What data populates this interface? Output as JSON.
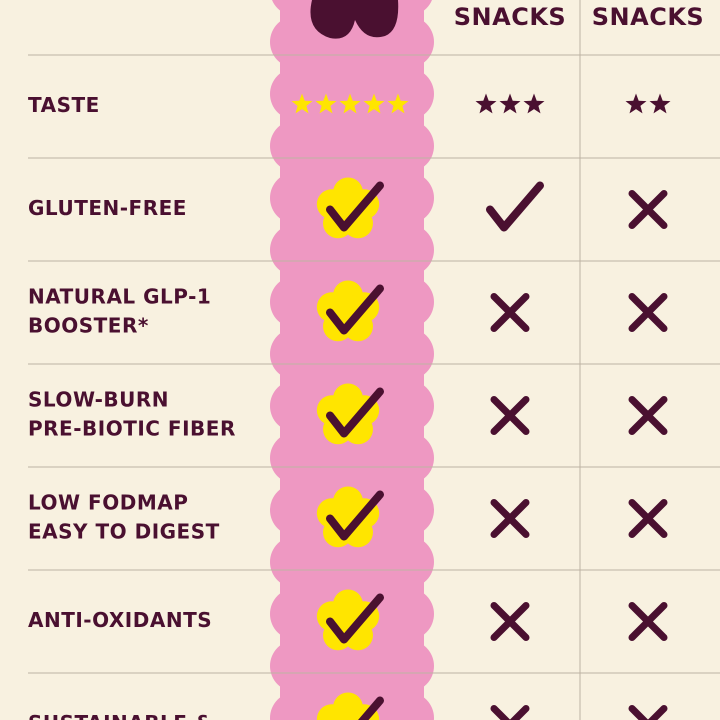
{
  "table": {
    "columns": [
      "SNACKS",
      "SNACKS"
    ],
    "rows": [
      {
        "label": [
          "TASTE"
        ],
        "ratings": [
          5,
          3,
          2
        ]
      },
      {
        "label": [
          "GLUTEN-FREE"
        ],
        "checks": [
          true,
          true,
          false
        ]
      },
      {
        "label": [
          "NATURAL GLP-1",
          "BOOSTER*"
        ],
        "checks": [
          true,
          false,
          false
        ]
      },
      {
        "label": [
          "SLOW-BURN",
          "PRE-BIOTIC FIBER"
        ],
        "checks": [
          true,
          false,
          false
        ]
      },
      {
        "label": [
          "LOW FODMAP",
          "EASY TO DIGEST"
        ],
        "checks": [
          true,
          false,
          false
        ]
      },
      {
        "label": [
          "ANTI-OXIDANTS"
        ],
        "checks": [
          true,
          false,
          false
        ]
      },
      {
        "label": [
          "SUSTAINABLE &"
        ],
        "checks": [
          true,
          false,
          false
        ]
      }
    ]
  }
}
